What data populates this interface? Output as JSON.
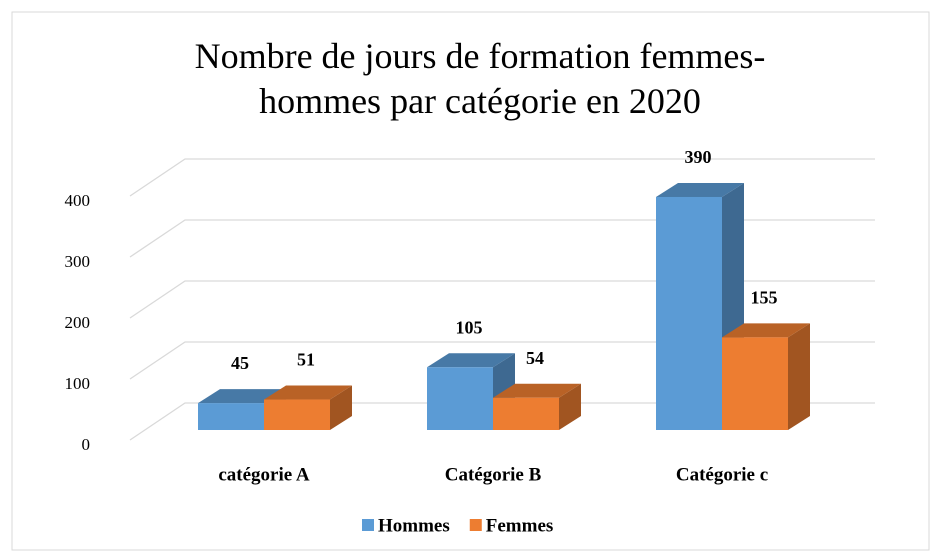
{
  "chart_data": {
    "type": "bar3d",
    "title": "Nombre de jours de formation femmes-hommes par catégorie en 2020",
    "categories": [
      "catégorie A",
      "Catégorie B",
      "Catégorie c"
    ],
    "series": [
      {
        "name": "Hommes",
        "color": "#5b9bd5",
        "values": [
          45,
          105,
          390
        ]
      },
      {
        "name": "Femmes",
        "color": "#ed7d31",
        "values": [
          51,
          54,
          155
        ]
      }
    ],
    "ylim": [
      0,
      400
    ],
    "yticks": [
      0,
      100,
      200,
      300,
      400
    ],
    "grid": true,
    "legend": "bottom"
  }
}
